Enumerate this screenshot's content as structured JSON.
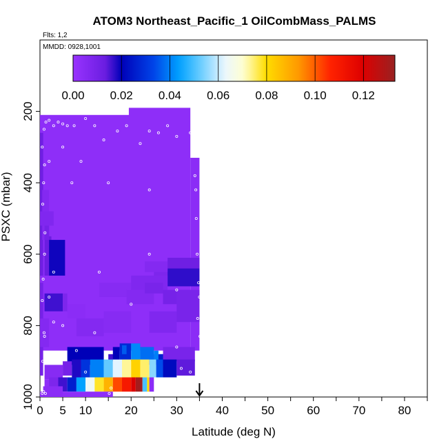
{
  "chart_data": {
    "type": "heatmap",
    "title": "ATOM3 Northeast_Pacific_1 OilCombMass_PALMS",
    "subtitle_flights": "Flts: 1,2",
    "subtitle_dates": "MMDD: 0928,1001",
    "xlabel": "Latitude (deg N)",
    "ylabel": "PSXC (mbar)",
    "xlim": [
      0,
      85
    ],
    "ylim": [
      1000,
      0
    ],
    "x_ticks": [
      0,
      5,
      10,
      20,
      30,
      40,
      50,
      60,
      70,
      80
    ],
    "x_minor_ticks": [
      15,
      25,
      35,
      45,
      55,
      65,
      75,
      85
    ],
    "y_ticks": [
      200,
      400,
      600,
      800,
      1000
    ],
    "colorbar": {
      "min": 0.0,
      "max": 0.133,
      "ticks": [
        0.0,
        0.02,
        0.04,
        0.06,
        0.08,
        0.1,
        0.12
      ],
      "tick_labels": [
        "0.00",
        "0.02",
        "0.04",
        "0.06",
        "0.08",
        "0.10",
        "0.12"
      ]
    },
    "marker": {
      "type": "arrow",
      "latitude": 35
    },
    "cells": [
      [
        0,
        20,
        210,
        870,
        0.003
      ],
      [
        19.5,
        33,
        190,
        870,
        0.003
      ],
      [
        33,
        35,
        330,
        870,
        0.004
      ],
      [
        0,
        0.7,
        260,
        660,
        0.012
      ],
      [
        0,
        0.7,
        680,
        940,
        0.01
      ],
      [
        0.5,
        2,
        420,
        560,
        0.006
      ],
      [
        1,
        2.5,
        550,
        660,
        0.013
      ],
      [
        2,
        5.5,
        560,
        660,
        0.019
      ],
      [
        1,
        2,
        520,
        560,
        0.01
      ],
      [
        1,
        5,
        710,
        760,
        0.016
      ],
      [
        5,
        6,
        710,
        760,
        0.008
      ],
      [
        0,
        3,
        480,
        520,
        0.007
      ],
      [
        13,
        20,
        680,
        720,
        0.005
      ],
      [
        19,
        25,
        700,
        740,
        0.006
      ],
      [
        25,
        28,
        640,
        680,
        0.008
      ],
      [
        28,
        35,
        640,
        690,
        0.017
      ],
      [
        23,
        28,
        620,
        650,
        0.006
      ],
      [
        28,
        35,
        610,
        640,
        0.012
      ],
      [
        20,
        28,
        660,
        700,
        0.007
      ],
      [
        23,
        27,
        680,
        710,
        0.009
      ],
      [
        27,
        33,
        700,
        740,
        0.01
      ],
      [
        6,
        10,
        740,
        780,
        0.004
      ],
      [
        8,
        14,
        780,
        830,
        0.006
      ],
      [
        14,
        20,
        760,
        820,
        0.005
      ],
      [
        24,
        30,
        760,
        820,
        0.007
      ],
      [
        30,
        35,
        700,
        790,
        0.009
      ],
      [
        0,
        2,
        780,
        860,
        0.006
      ],
      [
        6,
        14,
        860,
        910,
        0.02
      ],
      [
        1,
        4,
        950,
        1000,
        0.003
      ],
      [
        1,
        5,
        910,
        950,
        0.005
      ],
      [
        22,
        28,
        880,
        910,
        0.007
      ],
      [
        27,
        34,
        860,
        900,
        0.009
      ],
      [
        15,
        17,
        880,
        900,
        0.016
      ],
      [
        16,
        17.5,
        860,
        900,
        0.02
      ],
      [
        17.5,
        20,
        850,
        900,
        0.028
      ],
      [
        18,
        19,
        855,
        880,
        0.036
      ],
      [
        20,
        22,
        850,
        900,
        0.041
      ],
      [
        22,
        25,
        860,
        900,
        0.038
      ],
      [
        25,
        26,
        870,
        900,
        0.04
      ],
      [
        26,
        27,
        880,
        900,
        0.026
      ],
      [
        5,
        7,
        900,
        940,
        0.01
      ],
      [
        7,
        9,
        895,
        945,
        0.018
      ],
      [
        9,
        11,
        895,
        945,
        0.03
      ],
      [
        11,
        14,
        895,
        945,
        0.04
      ],
      [
        14,
        16,
        895,
        945,
        0.052
      ],
      [
        16,
        18,
        895,
        945,
        0.062
      ],
      [
        18,
        20,
        895,
        945,
        0.073
      ],
      [
        20,
        22,
        895,
        945,
        0.082
      ],
      [
        22,
        24,
        895,
        945,
        0.075
      ],
      [
        24,
        25.5,
        895,
        945,
        0.055
      ],
      [
        25.5,
        27,
        895,
        945,
        0.034
      ],
      [
        27,
        30,
        895,
        945,
        0.022
      ],
      [
        30,
        34,
        895,
        940,
        0.014
      ],
      [
        2,
        4,
        945,
        985,
        0.008
      ],
      [
        4,
        6,
        945,
        985,
        0.016
      ],
      [
        6,
        8,
        945,
        985,
        0.026
      ],
      [
        8,
        10,
        945,
        985,
        0.044
      ],
      [
        10,
        12,
        945,
        985,
        0.064
      ],
      [
        12,
        14,
        945,
        985,
        0.078
      ],
      [
        14,
        16,
        945,
        985,
        0.088
      ],
      [
        16,
        18,
        945,
        985,
        0.102
      ],
      [
        18,
        20,
        945,
        985,
        0.11
      ],
      [
        20,
        21,
        945,
        985,
        0.12
      ],
      [
        21,
        22.5,
        945,
        985,
        0.131
      ],
      [
        22.5,
        23.5,
        945,
        985,
        0.05
      ],
      [
        23.5,
        24,
        945,
        985,
        0.08
      ],
      [
        24,
        25,
        945,
        985,
        0.004
      ],
      [
        0,
        16,
        985,
        1000,
        0.003
      ],
      [
        0.7,
        5,
        970,
        1000,
        0.004
      ]
    ],
    "points": [
      [
        0.5,
        990
      ],
      [
        0.8,
        985
      ],
      [
        1.2,
        990
      ],
      [
        0.6,
        900
      ],
      [
        0.9,
        820
      ],
      [
        0.5,
        730
      ],
      [
        0.7,
        670
      ],
      [
        1.0,
        600
      ],
      [
        1.1,
        540
      ],
      [
        0.6,
        460
      ],
      [
        0.8,
        400
      ],
      [
        1.0,
        350
      ],
      [
        0.5,
        300
      ],
      [
        0.9,
        250
      ],
      [
        1.3,
        230
      ],
      [
        2.0,
        225
      ],
      [
        3.0,
        240
      ],
      [
        4.0,
        230
      ],
      [
        5.0,
        235
      ],
      [
        6.0,
        240
      ],
      [
        7.5,
        240
      ],
      [
        10,
        220
      ],
      [
        12,
        240
      ],
      [
        14,
        280
      ],
      [
        15,
        400
      ],
      [
        17,
        255
      ],
      [
        19,
        240
      ],
      [
        22,
        290
      ],
      [
        24,
        255
      ],
      [
        26,
        260
      ],
      [
        28,
        240
      ],
      [
        30,
        270
      ],
      [
        33,
        260
      ],
      [
        34.3,
        500
      ],
      [
        34.5,
        600
      ],
      [
        34.8,
        680
      ],
      [
        35.0,
        720
      ],
      [
        34.6,
        780
      ],
      [
        35.1,
        830
      ],
      [
        34.8,
        880
      ],
      [
        3,
        650
      ],
      [
        2,
        720
      ],
      [
        3,
        790
      ],
      [
        1,
        830
      ],
      [
        5,
        800
      ],
      [
        8,
        870
      ],
      [
        10,
        930
      ],
      [
        12,
        820
      ],
      [
        13,
        650
      ],
      [
        20,
        740
      ],
      [
        24,
        600
      ],
      [
        30,
        860
      ],
      [
        31,
        920
      ],
      [
        33,
        930
      ],
      [
        9,
        340
      ],
      [
        2,
        340
      ],
      [
        7,
        400
      ],
      [
        24,
        420
      ],
      [
        5,
        300
      ],
      [
        30,
        700
      ],
      [
        15.2,
        990
      ],
      [
        15.6,
        975
      ],
      [
        34.2,
        420
      ],
      [
        34.0,
        380
      ],
      [
        33.8,
        300
      ]
    ]
  }
}
